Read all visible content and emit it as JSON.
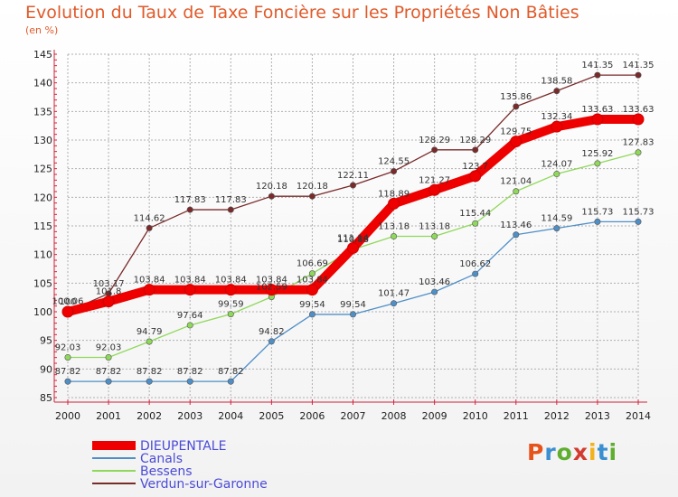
{
  "title": "Evolution du Taux de Taxe Foncière sur les Propriétés Non Bâties",
  "subtitle": "(en %)",
  "logo": {
    "text": "Proxiti",
    "colors": [
      "#e7521a",
      "#3a8fd1",
      "#5fae2f",
      "#d33b2f",
      "#f2b21b",
      "#3a8fd1",
      "#5fae2f"
    ]
  },
  "colors": {
    "title": "#e05a2a",
    "grid": "#b0b0b0",
    "axis_ticks": "#d0223a"
  },
  "chart_data": {
    "type": "line",
    "x": [
      2000,
      2001,
      2002,
      2003,
      2004,
      2005,
      2006,
      2007,
      2008,
      2009,
      2010,
      2011,
      2012,
      2013,
      2014
    ],
    "ylim": [
      85,
      145
    ],
    "yticks": [
      85,
      90,
      95,
      100,
      105,
      110,
      115,
      120,
      125,
      130,
      135,
      140,
      145
    ],
    "grid": true,
    "legend_position": "bottom-left",
    "series": [
      {
        "name": "DIEUPENTALE",
        "color": "#ee0000",
        "width": 10,
        "values": [
          100,
          101.8,
          103.84,
          103.84,
          103.84,
          103.84,
          103.84,
          111.14,
          118.89,
          121.27,
          123.7,
          129.75,
          132.34,
          133.63,
          133.63
        ],
        "labels": [
          "100",
          "101.8",
          "103.84",
          "103.84",
          "103.84",
          "103.84",
          "103.84",
          "111.14",
          "118.89",
          "121.27",
          "123.7",
          "129.75",
          "132.34",
          "133.63",
          "133.63"
        ]
      },
      {
        "name": "Canals",
        "color": "#4f8fc7",
        "width": 1.3,
        "values": [
          87.82,
          87.82,
          87.82,
          87.82,
          87.82,
          94.82,
          99.54,
          99.54,
          101.47,
          103.46,
          106.62,
          113.46,
          114.59,
          115.73,
          115.73
        ],
        "labels": [
          "87.82",
          "87.82",
          "87.82",
          "87.82",
          "87.82",
          "94.82",
          "99.54",
          "99.54",
          "101.47",
          "103.46",
          "106.62",
          "113.46",
          "114.59",
          "115.73",
          "115.73"
        ]
      },
      {
        "name": "Bessens",
        "color": "#8fd85a",
        "width": 1.3,
        "values": [
          92.03,
          92.03,
          94.79,
          97.64,
          99.59,
          102.59,
          106.69,
          110.88,
          113.18,
          113.18,
          115.44,
          121.04,
          124.07,
          125.92,
          127.83
        ],
        "labels": [
          "92.03",
          "92.03",
          "94.79",
          "97.64",
          "99.59",
          "102.59",
          "106.69",
          "110.88",
          "113.18",
          "113.18",
          "115.44",
          "121.04",
          "124.07",
          "125.92",
          "127.83"
        ]
      },
      {
        "name": "Verdun-sur-Garonne",
        "color": "#7a2a2a",
        "width": 1.3,
        "values": [
          100.06,
          103.17,
          114.62,
          117.83,
          117.83,
          120.18,
          120.18,
          122.11,
          124.55,
          128.29,
          128.29,
          135.86,
          138.58,
          141.35,
          141.35
        ],
        "labels": [
          "100.06",
          "103.17",
          "114.62",
          "117.83",
          "117.83",
          "120.18",
          "120.18",
          "122.11",
          "124.55",
          "128.29",
          "128.29",
          "135.86",
          "138.58",
          "141.35",
          "141.35"
        ]
      }
    ]
  }
}
